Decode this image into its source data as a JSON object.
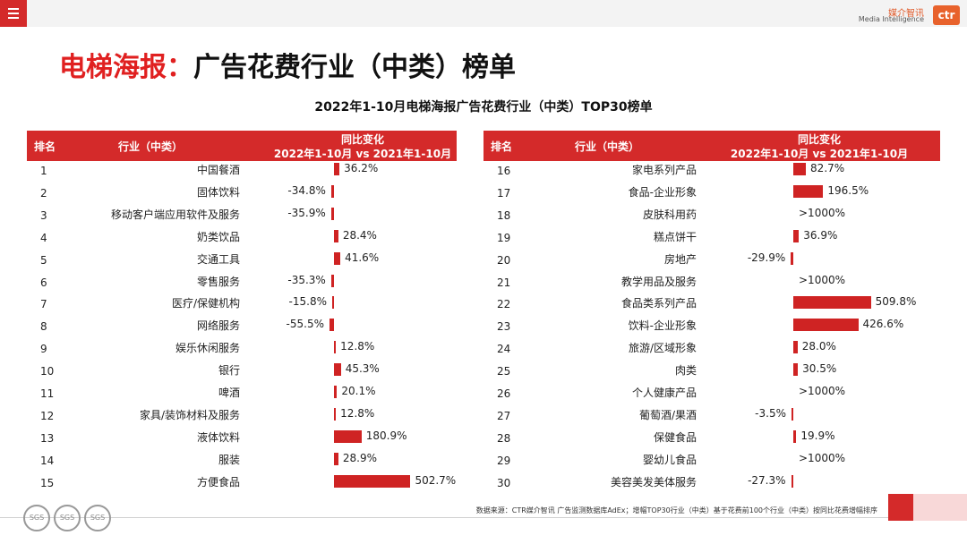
{
  "header": {
    "logo_cn": "媒介智讯",
    "logo_en": "Media Intelligence",
    "logo_mark": "ctr"
  },
  "page": {
    "title_part1": "电梯海报：",
    "title_part2": "广告花费行业（中类）榜单",
    "subtitle": "2022年1-10月电梯海报广告花费行业（中类）TOP30榜单",
    "source": "数据来源：CTR媒介智讯 广告监测数据库AdEx；增幅TOP30行业（中类）基于花费前100个行业（中类）按同比花费增幅排序",
    "seal_label": "SGS"
  },
  "table": {
    "col_rank": "排名",
    "col_industry": "行业（中类）",
    "col_change_line1": "同比变化",
    "col_change_line2": "2022年1-10月 vs 2021年1-10月"
  },
  "chart_data": {
    "type": "bar",
    "title": "2022年1-10月电梯海报广告花费行业（中类）TOP30榜单",
    "ylabel": "同比变化（%）",
    "note": "bars capped visually; >1000% shown as text",
    "rows": [
      {
        "rank": "1",
        "name": "中国餐酒",
        "value": 36.2,
        "label": "36.2%"
      },
      {
        "rank": "2",
        "name": "固体饮料",
        "value": -34.8,
        "label": "-34.8%"
      },
      {
        "rank": "3",
        "name": "移动客户端应用软件及服务",
        "value": -35.9,
        "label": "-35.9%"
      },
      {
        "rank": "4",
        "name": "奶类饮品",
        "value": 28.4,
        "label": "28.4%"
      },
      {
        "rank": "5",
        "name": "交通工具",
        "value": 41.6,
        "label": "41.6%"
      },
      {
        "rank": "6",
        "name": "零售服务",
        "value": -35.3,
        "label": "-35.3%"
      },
      {
        "rank": "7",
        "name": "医疗/保健机构",
        "value": -15.8,
        "label": "-15.8%"
      },
      {
        "rank": "8",
        "name": "网络服务",
        "value": -55.5,
        "label": "-55.5%"
      },
      {
        "rank": "9",
        "name": "娱乐休闲服务",
        "value": 12.8,
        "label": "12.8%"
      },
      {
        "rank": "10",
        "name": "银行",
        "value": 45.3,
        "label": "45.3%"
      },
      {
        "rank": "11",
        "name": "啤酒",
        "value": 20.1,
        "label": "20.1%"
      },
      {
        "rank": "12",
        "name": "家具/装饰材料及服务",
        "value": 12.8,
        "label": "12.8%"
      },
      {
        "rank": "13",
        "name": "液体饮料",
        "value": 180.9,
        "label": "180.9%"
      },
      {
        "rank": "14",
        "name": "服装",
        "value": 28.9,
        "label": "28.9%"
      },
      {
        "rank": "15",
        "name": "方便食品",
        "value": 502.7,
        "label": "502.7%"
      },
      {
        "rank": "16",
        "name": "家电系列产品",
        "value": 82.7,
        "label": "82.7%"
      },
      {
        "rank": "17",
        "name": "食品-企业形象",
        "value": 196.5,
        "label": "196.5%"
      },
      {
        "rank": "18",
        "name": "皮肤科用药",
        "value": null,
        "label": ">1000%"
      },
      {
        "rank": "19",
        "name": "糕点饼干",
        "value": 36.9,
        "label": "36.9%"
      },
      {
        "rank": "20",
        "name": "房地产",
        "value": -29.9,
        "label": "-29.9%"
      },
      {
        "rank": "21",
        "name": "教学用品及服务",
        "value": null,
        "label": ">1000%"
      },
      {
        "rank": "22",
        "name": "食品类系列产品",
        "value": 509.8,
        "label": "509.8%"
      },
      {
        "rank": "23",
        "name": "饮料-企业形象",
        "value": 426.6,
        "label": "426.6%"
      },
      {
        "rank": "24",
        "name": "旅游/区域形象",
        "value": 28.0,
        "label": "28.0%"
      },
      {
        "rank": "25",
        "name": "肉类",
        "value": 30.5,
        "label": "30.5%"
      },
      {
        "rank": "26",
        "name": "个人健康产品",
        "value": null,
        "label": ">1000%"
      },
      {
        "rank": "27",
        "name": "葡萄酒/果酒",
        "value": -3.5,
        "label": "-3.5%"
      },
      {
        "rank": "28",
        "name": "保健食品",
        "value": 19.9,
        "label": "19.9%"
      },
      {
        "rank": "29",
        "name": "婴幼儿食品",
        "value": null,
        "label": ">1000%"
      },
      {
        "rank": "30",
        "name": "美容美发美体服务",
        "value": -27.3,
        "label": "-27.3%"
      }
    ]
  }
}
